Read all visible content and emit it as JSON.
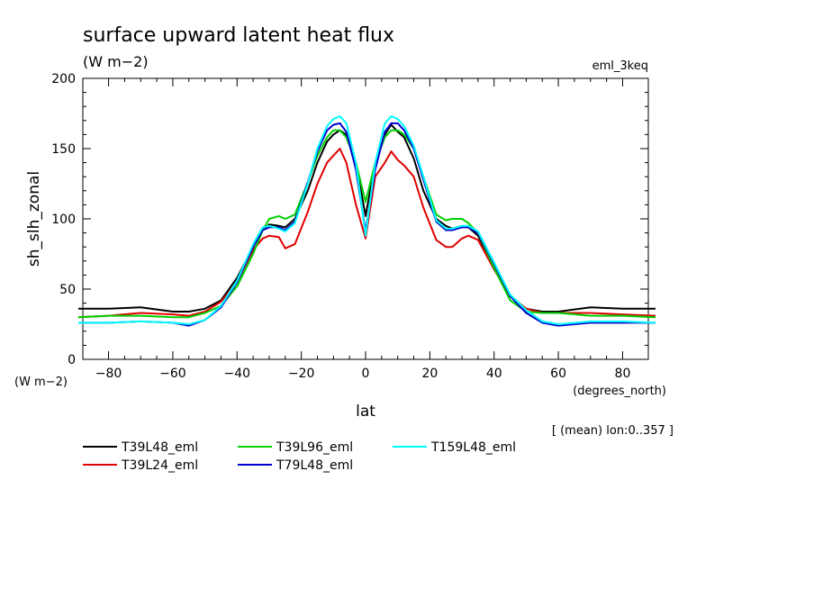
{
  "chart_data": {
    "type": "line",
    "title": "surface upward latent heat flux",
    "subtitle": "(W m−2)",
    "experiment": "eml_3keq",
    "xlabel": "lat",
    "x_units": "(degrees_north)",
    "ylabel": "sh_slh_zonal",
    "y_units": "(W m−2)",
    "note": "[ (mean) lon:0..357 ]",
    "xlim": [
      -88,
      88
    ],
    "ylim": [
      0,
      200
    ],
    "x_ticks": [
      -80,
      -60,
      -40,
      -20,
      0,
      20,
      40,
      60,
      80
    ],
    "y_ticks": [
      0,
      50,
      100,
      150,
      200
    ],
    "legend_position": "bottom",
    "x": [
      -88,
      -80,
      -70,
      -60,
      -55,
      -50,
      -45,
      -40,
      -35,
      -32,
      -30,
      -27,
      -25,
      -22,
      -18,
      -15,
      -12,
      -10,
      -8,
      -6,
      -3,
      0,
      3,
      6,
      8,
      10,
      12,
      15,
      18,
      22,
      25,
      27,
      30,
      32,
      35,
      40,
      45,
      50,
      55,
      60,
      70,
      80,
      88
    ],
    "series": [
      {
        "name": "T39L48_eml",
        "color": "#000000",
        "values": [
          36,
          36,
          37,
          34,
          34,
          36,
          42,
          58,
          80,
          92,
          96,
          95,
          94,
          100,
          120,
          140,
          155,
          160,
          163,
          160,
          140,
          102,
          140,
          160,
          167,
          162,
          158,
          143,
          120,
          100,
          95,
          93,
          95,
          94,
          88,
          65,
          45,
          36,
          34,
          34,
          37,
          36,
          36
        ]
      },
      {
        "name": "T39L24_eml",
        "color": "#e00000",
        "values": [
          30,
          31,
          33,
          32,
          31,
          34,
          41,
          55,
          78,
          86,
          88,
          87,
          79,
          82,
          105,
          125,
          140,
          145,
          150,
          140,
          110,
          86,
          130,
          140,
          148,
          142,
          138,
          130,
          108,
          85,
          80,
          80,
          86,
          88,
          85,
          64,
          45,
          36,
          33,
          33,
          33,
          32,
          31
        ]
      },
      {
        "name": "T39L96_eml",
        "color": "#00d000",
        "values": [
          30,
          31,
          31,
          30,
          30,
          33,
          38,
          52,
          75,
          92,
          100,
          102,
          100,
          103,
          126,
          145,
          158,
          163,
          163,
          158,
          140,
          112,
          140,
          158,
          163,
          163,
          160,
          150,
          130,
          103,
          99,
          100,
          100,
          97,
          90,
          65,
          42,
          34,
          33,
          33,
          31,
          31,
          30
        ]
      },
      {
        "name": "T79L48_eml",
        "color": "#0000d0",
        "values": [
          26,
          26,
          27,
          26,
          24,
          28,
          37,
          55,
          80,
          92,
          94,
          94,
          92,
          98,
          126,
          148,
          163,
          167,
          168,
          162,
          135,
          91,
          135,
          162,
          168,
          168,
          163,
          150,
          128,
          98,
          92,
          92,
          94,
          94,
          90,
          68,
          45,
          33,
          26,
          24,
          26,
          26,
          26
        ]
      },
      {
        "name": "T159L48_eml",
        "color": "#00ffff",
        "values": [
          26,
          26,
          27,
          26,
          25,
          28,
          38,
          56,
          82,
          94,
          95,
          93,
          91,
          97,
          125,
          150,
          166,
          171,
          173,
          168,
          140,
          88,
          140,
          168,
          173,
          171,
          166,
          152,
          130,
          99,
          93,
          93,
          95,
          95,
          91,
          69,
          46,
          35,
          27,
          25,
          27,
          27,
          26
        ]
      }
    ]
  }
}
